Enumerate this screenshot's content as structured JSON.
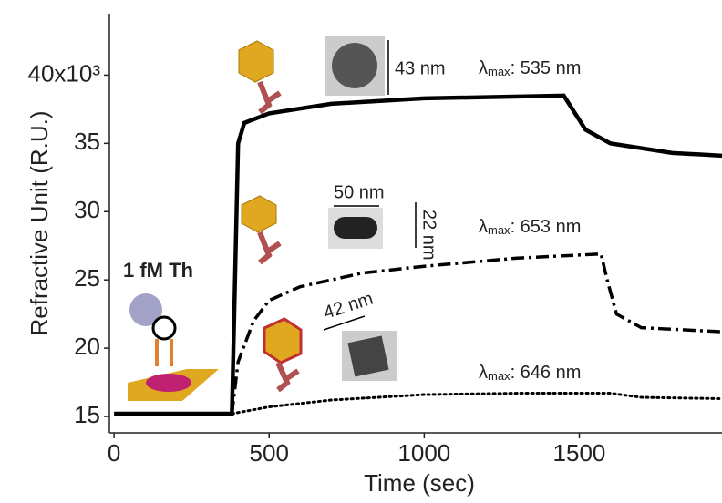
{
  "chart_data": {
    "type": "line",
    "xlabel": "Time (sec)",
    "ylabel": "Refractive Unit (R.U.)",
    "xlim": [
      -15,
      1960
    ],
    "ylim": [
      13.8,
      44.5
    ],
    "xticks": [
      0,
      500,
      1000,
      1500
    ],
    "yticks": [
      15,
      20,
      25,
      30,
      35,
      {
        "value": 40,
        "label": "40x10³"
      }
    ],
    "series": [
      {
        "style": "solid",
        "color": "#000000",
        "x": [
          0,
          380,
          390,
          400,
          420,
          500,
          700,
          1000,
          1450,
          1520,
          1600,
          1800,
          1960
        ],
        "values": [
          15.2,
          15.2,
          25,
          35,
          36.5,
          37.2,
          37.9,
          38.3,
          38.5,
          36,
          35,
          34.3,
          34.1
        ]
      },
      {
        "style": "dashdot",
        "color": "#000000",
        "x": [
          380,
          400,
          450,
          500,
          600,
          800,
          1000,
          1300,
          1570,
          1590,
          1620,
          1700,
          1960
        ],
        "values": [
          15.2,
          19,
          22,
          23.5,
          24.5,
          25.5,
          26,
          26.6,
          26.9,
          25,
          22.5,
          21.5,
          21.2
        ]
      },
      {
        "style": "dotted",
        "color": "#000000",
        "x": [
          380,
          500,
          700,
          1000,
          1300,
          1600,
          1700,
          1960
        ],
        "values": [
          15.2,
          15.7,
          16.2,
          16.6,
          16.7,
          16.7,
          16.4,
          16.3
        ]
      }
    ],
    "annotations": [
      "1 fM Th",
      "43 nm",
      "50 nm",
      "22 nm",
      "42 nm"
    ],
    "lambda_labels": [
      {
        "symbol": "λ",
        "subscript": "max",
        "text": ": 535 nm"
      },
      {
        "symbol": "λ",
        "subscript": "max",
        "text": ": 653 nm"
      },
      {
        "symbol": "λ",
        "subscript": "max",
        "text": ": 646 nm"
      }
    ]
  }
}
